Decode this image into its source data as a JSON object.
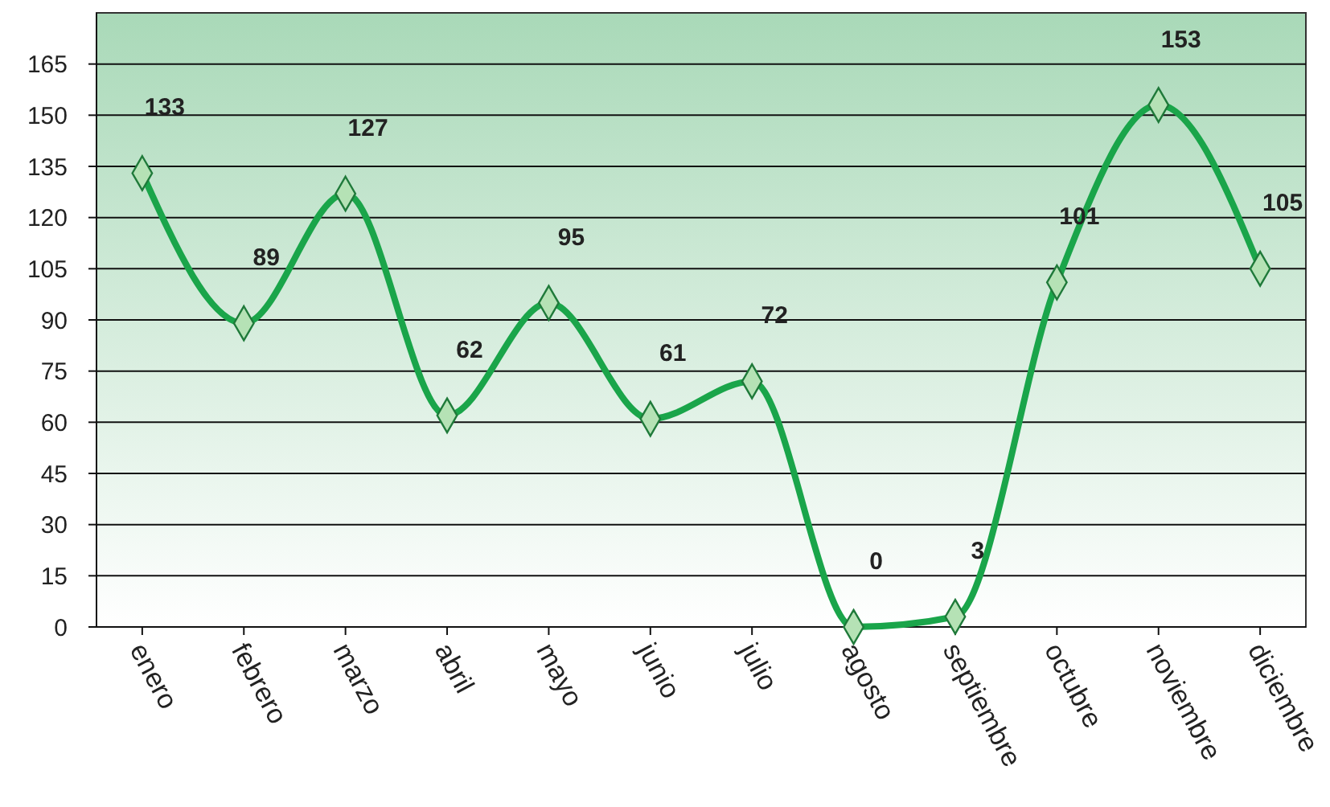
{
  "chart_data": {
    "type": "line",
    "categories": [
      "enero",
      "febrero",
      "marzo",
      "abril",
      "mayo",
      "junio",
      "julio",
      "agosto",
      "septiembre",
      "octubre",
      "noviembre",
      "diciembre"
    ],
    "series": [
      {
        "color": "#1aa54a",
        "values": [
          133,
          89,
          127,
          62,
          95,
          61,
          72,
          0,
          3,
          101,
          153,
          105
        ]
      }
    ],
    "ylim": [
      0,
      180
    ],
    "yticks": [
      0,
      15,
      30,
      45,
      60,
      75,
      90,
      105,
      120,
      135,
      150,
      165
    ],
    "grid": "y",
    "marker": "diamond",
    "line_style": "solid",
    "data_labels": true
  }
}
